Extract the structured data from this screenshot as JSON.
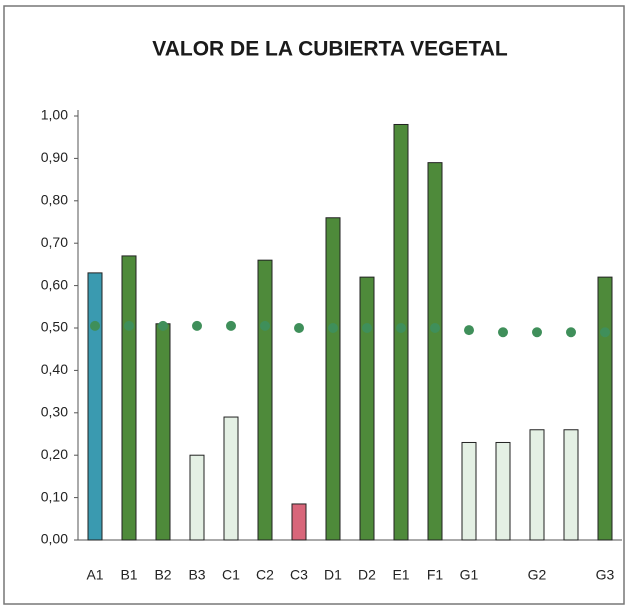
{
  "chart_data": {
    "type": "bar",
    "title": "VALOR DE LA CUBIERTA VEGETAL",
    "categories": [
      "A1",
      "B1",
      "B2",
      "B3",
      "C1",
      "C2",
      "C3",
      "D1",
      "D2",
      "E1",
      "F1",
      "G1",
      null,
      "G2",
      null,
      "G3"
    ],
    "values": [
      0.63,
      0.67,
      0.51,
      0.2,
      0.29,
      0.66,
      0.085,
      0.76,
      0.62,
      0.98,
      0.89,
      0.23,
      0.23,
      0.26,
      0.26,
      0.62
    ],
    "colors": [
      "#3a9ab0",
      "#4e8a3a",
      "#4e8a3a",
      "#e4f0e4",
      "#e4f0e4",
      "#4e8a3a",
      "#d8667a",
      "#4e8a3a",
      "#4e8a3a",
      "#4e8a3a",
      "#4e8a3a",
      "#e4f0e4",
      "#e4f0e4",
      "#e4f0e4",
      "#e4f0e4",
      "#4e8a3a"
    ],
    "dot_values": [
      0.505,
      0.505,
      0.505,
      0.505,
      0.505,
      0.505,
      0.5,
      0.5,
      0.5,
      0.5,
      0.5,
      0.495,
      0.49,
      0.49,
      0.49,
      0.49
    ],
    "dot_color": "#3f8f5a",
    "ylim": [
      0,
      1
    ],
    "yticks": [
      {
        "value": 0,
        "label": "0,00"
      },
      {
        "value": 0.1,
        "label": "0,10"
      },
      {
        "value": 0.2,
        "label": "0,20"
      },
      {
        "value": 0.3,
        "label": "0,30"
      },
      {
        "value": 0.4,
        "label": "0,40"
      },
      {
        "value": 0.5,
        "label": "0,50"
      },
      {
        "value": 0.6,
        "label": "0,60"
      },
      {
        "value": 0.7,
        "label": "0,70"
      },
      {
        "value": 0.8,
        "label": "0,80"
      },
      {
        "value": 0.9,
        "label": "0,90"
      },
      {
        "value": 1,
        "label": "1,00"
      }
    ]
  }
}
